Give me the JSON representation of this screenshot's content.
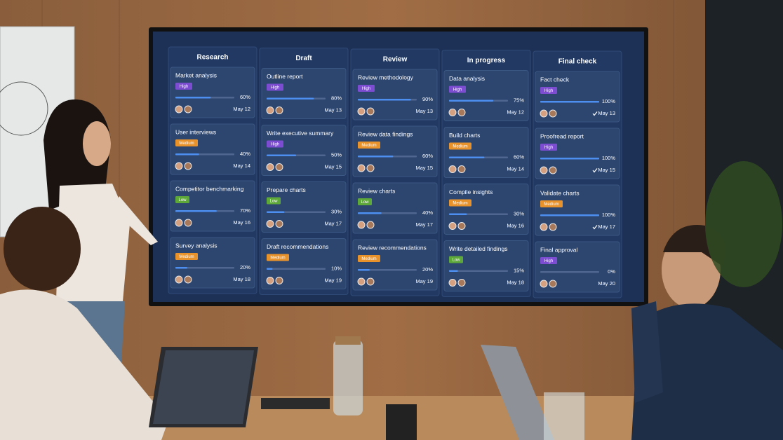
{
  "board": {
    "columns": [
      {
        "title": "Research",
        "cards": [
          {
            "title": "Market analysis",
            "priority": {
              "label": "High",
              "color": "#7c4dd0"
            },
            "progress": {
              "value": 60,
              "label": "60%"
            },
            "date": "May 12"
          },
          {
            "title": "User interviews",
            "priority": {
              "label": "Medium",
              "color": "#e8922c"
            },
            "progress": {
              "value": 40,
              "label": "40%"
            },
            "date": "May 14"
          },
          {
            "title": "Competitor benchmarking",
            "priority": {
              "label": "Low",
              "color": "#5ea83a"
            },
            "progress": {
              "value": 70,
              "label": "70%"
            },
            "date": "May 16"
          },
          {
            "title": "Survey analysis",
            "priority": {
              "label": "Medium",
              "color": "#e8922c"
            },
            "progress": {
              "value": 20,
              "label": "20%"
            },
            "date": "May 18"
          }
        ]
      },
      {
        "title": "Draft",
        "cards": [
          {
            "title": "Outline report",
            "priority": {
              "label": "High",
              "color": "#7c4dd0"
            },
            "progress": {
              "value": 80,
              "label": "80%"
            },
            "date": "May 13"
          },
          {
            "title": "Write executive summary",
            "priority": {
              "label": "High",
              "color": "#7c4dd0"
            },
            "progress": {
              "value": 50,
              "label": "50%"
            },
            "date": "May 15"
          },
          {
            "title": "Prepare charts",
            "priority": {
              "label": "Low",
              "color": "#5ea83a"
            },
            "progress": {
              "value": 30,
              "label": "30%"
            },
            "date": "May 17"
          },
          {
            "title": "Draft recommendations",
            "priority": {
              "label": "Medium",
              "color": "#e8922c"
            },
            "progress": {
              "value": 10,
              "label": "10%"
            },
            "date": "May 19"
          }
        ]
      },
      {
        "title": "Review",
        "cards": [
          {
            "title": "Review methodology",
            "priority": {
              "label": "High",
              "color": "#7c4dd0"
            },
            "progress": {
              "value": 90,
              "label": "90%"
            },
            "date": "May 13"
          },
          {
            "title": "Review data findings",
            "priority": {
              "label": "Medium",
              "color": "#e8922c"
            },
            "progress": {
              "value": 60,
              "label": "60%"
            },
            "date": "May 15"
          },
          {
            "title": "Review charts",
            "priority": {
              "label": "Low",
              "color": "#5ea83a"
            },
            "progress": {
              "value": 40,
              "label": "40%"
            },
            "date": "May 17"
          },
          {
            "title": "Review recommendations",
            "priority": {
              "label": "Medium",
              "color": "#e8922c"
            },
            "progress": {
              "value": 20,
              "label": "20%"
            },
            "date": "May 19"
          }
        ]
      },
      {
        "title": "In progress",
        "cards": [
          {
            "title": "Data analysis",
            "priority": {
              "label": "High",
              "color": "#7c4dd0"
            },
            "progress": {
              "value": 75,
              "label": "75%"
            },
            "date": "May 12"
          },
          {
            "title": "Build charts",
            "priority": {
              "label": "Medium",
              "color": "#e8922c"
            },
            "progress": {
              "value": 60,
              "label": "60%"
            },
            "date": "May 14"
          },
          {
            "title": "Compile insights",
            "priority": {
              "label": "Medium",
              "color": "#e8922c"
            },
            "progress": {
              "value": 30,
              "label": "30%"
            },
            "date": "May 16"
          },
          {
            "title": "Write detailed findings",
            "priority": {
              "label": "Low",
              "color": "#5ea83a"
            },
            "progress": {
              "value": 15,
              "label": "15%"
            },
            "date": "May 18"
          }
        ]
      },
      {
        "title": "Final check",
        "cards": [
          {
            "title": "Fact check",
            "priority": {
              "label": "High",
              "color": "#7c4dd0"
            },
            "progress": {
              "value": 100,
              "label": "100%"
            },
            "date": "May 13",
            "done": true
          },
          {
            "title": "Proofread report",
            "priority": {
              "label": "High",
              "color": "#7c4dd0"
            },
            "progress": {
              "value": 100,
              "label": "100%"
            },
            "date": "May 15",
            "done": true
          },
          {
            "title": "Validate charts",
            "priority": {
              "label": "Medium",
              "color": "#e8922c"
            },
            "progress": {
              "value": 100,
              "label": "100%"
            },
            "date": "May 17",
            "done": true
          },
          {
            "title": "Final approval",
            "priority": {
              "label": "High",
              "color": "#7c4dd0"
            },
            "progress": {
              "value": 0,
              "label": "0%"
            },
            "date": "May 20"
          }
        ]
      }
    ]
  }
}
